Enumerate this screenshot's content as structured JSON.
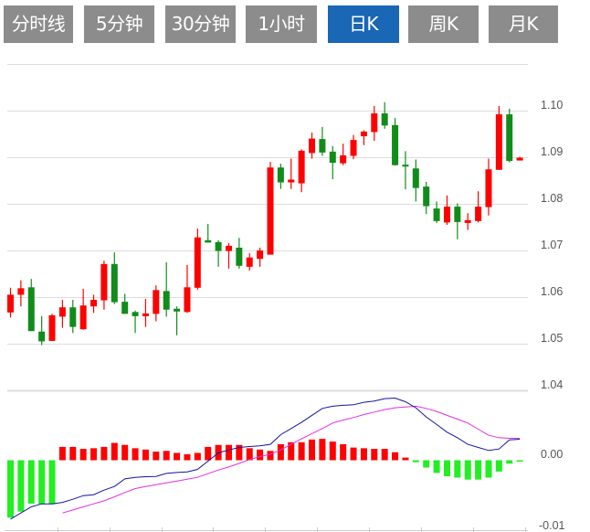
{
  "tabs": [
    {
      "label": "分时线",
      "active": false
    },
    {
      "label": "5分钟",
      "active": false
    },
    {
      "label": "30分钟",
      "active": false
    },
    {
      "label": "1小时",
      "active": false
    },
    {
      "label": "日K",
      "active": true
    },
    {
      "label": "周K",
      "active": false
    },
    {
      "label": "月K",
      "active": false
    }
  ],
  "colors": {
    "tab_bg": "#8c8c8c",
    "tab_active_bg": "#1a67b5",
    "up": "#ff0000",
    "down": "#118c1a",
    "hist_up": "#ff0000",
    "hist_down": "#22ee22",
    "dif": "#1414a0",
    "dea": "#e030e0",
    "grid": "#dddddd"
  },
  "chart_data": [
    {
      "type": "candlestick",
      "y_ticks": [
        "1.10",
        "1.09",
        "1.08",
        "1.07",
        "1.06",
        "1.05",
        "1.04"
      ],
      "ylim": [
        1.04,
        1.11
      ],
      "grid": true,
      "ohlc": [
        [
          1.0567,
          1.062,
          1.0556,
          1.0605
        ],
        [
          1.0605,
          1.0636,
          1.058,
          1.0619
        ],
        [
          1.0621,
          1.0639,
          1.0527,
          1.0527
        ],
        [
          1.0526,
          1.0559,
          1.0497,
          1.0505
        ],
        [
          1.0506,
          1.0564,
          1.0506,
          1.0561
        ],
        [
          1.0558,
          1.0594,
          1.0534,
          1.0578
        ],
        [
          1.0578,
          1.0594,
          1.0523,
          1.0536
        ],
        [
          1.0531,
          1.0618,
          1.053,
          1.0582
        ],
        [
          1.058,
          1.0605,
          1.0566,
          1.0594
        ],
        [
          1.0593,
          1.0678,
          1.0573,
          1.0671
        ],
        [
          1.0671,
          1.0696,
          1.0585,
          1.0589
        ],
        [
          1.059,
          1.0607,
          1.0564,
          1.0564
        ],
        [
          1.0568,
          1.0571,
          1.0523,
          1.0559
        ],
        [
          1.0559,
          1.0596,
          1.0536,
          1.0565
        ],
        [
          1.0564,
          1.0625,
          1.0548,
          1.0615
        ],
        [
          1.0613,
          1.0675,
          1.0558,
          1.0573
        ],
        [
          1.0575,
          1.058,
          1.0518,
          1.0569
        ],
        [
          1.0568,
          1.0669,
          1.0566,
          1.0621
        ],
        [
          1.062,
          1.0747,
          1.0616,
          1.0728
        ],
        [
          1.0722,
          1.0757,
          1.0717,
          1.0717
        ],
        [
          1.0718,
          1.0722,
          1.0665,
          1.0699
        ],
        [
          1.0699,
          1.0716,
          1.0661,
          1.071
        ],
        [
          1.0706,
          1.0727,
          1.0661,
          1.0667
        ],
        [
          1.0665,
          1.0694,
          1.0657,
          1.0685
        ],
        [
          1.0682,
          1.0706,
          1.0665,
          1.07
        ],
        [
          1.0691,
          1.089,
          1.0691,
          1.0878
        ],
        [
          1.0878,
          1.0886,
          1.0832,
          1.0846
        ],
        [
          1.0846,
          1.0897,
          1.0832,
          1.0852
        ],
        [
          1.0844,
          1.0917,
          1.0825,
          1.0914
        ],
        [
          1.0909,
          1.0953,
          1.0897,
          1.094
        ],
        [
          1.0939,
          1.0965,
          1.0903,
          1.091
        ],
        [
          1.0912,
          1.0924,
          1.0853,
          1.0888
        ],
        [
          1.0887,
          1.0929,
          1.0883,
          1.0904
        ],
        [
          1.0903,
          1.0948,
          1.0896,
          1.0937
        ],
        [
          1.0945,
          1.0958,
          1.0926,
          1.0955
        ],
        [
          1.0954,
          1.101,
          1.0935,
          1.0994
        ],
        [
          1.0994,
          1.1018,
          1.0961,
          1.0968
        ],
        [
          1.0969,
          1.0984,
          1.0882,
          1.0883
        ],
        [
          1.0884,
          1.0913,
          1.0831,
          1.088
        ],
        [
          1.0876,
          1.0895,
          1.0805,
          1.0834
        ],
        [
          1.0837,
          1.0847,
          1.0778,
          1.0795
        ],
        [
          1.079,
          1.0805,
          1.0759,
          1.0763
        ],
        [
          1.076,
          1.0818,
          1.0755,
          1.0794
        ],
        [
          1.0794,
          1.0801,
          1.0724,
          1.0761
        ],
        [
          1.0759,
          1.078,
          1.0744,
          1.0765
        ],
        [
          1.0763,
          1.0827,
          1.076,
          1.0794
        ],
        [
          1.0793,
          1.0897,
          1.0775,
          1.0874
        ],
        [
          1.0873,
          1.101,
          1.0873,
          1.0992
        ],
        [
          1.0992,
          1.1004,
          1.0889,
          1.0892
        ],
        [
          1.0893,
          1.0901,
          1.0893,
          1.0899
        ]
      ]
    },
    {
      "type": "bar+line",
      "y_ticks": [
        "0.00",
        "-0.01"
      ],
      "grid": false,
      "histogram": [
        -0.0086,
        -0.0077,
        -0.0065,
        -0.0066,
        -0.0066,
        0.002,
        0.002,
        0.0017,
        0.0018,
        0.002,
        0.0026,
        0.0023,
        0.0018,
        0.0016,
        0.0013,
        0.0014,
        0.0011,
        0.0009,
        0.0011,
        0.002,
        0.0023,
        0.0023,
        0.0023,
        0.0018,
        0.0016,
        0.0014,
        0.0024,
        0.0027,
        0.0027,
        0.0031,
        0.0032,
        0.0028,
        0.0024,
        0.0019,
        0.0018,
        0.0017,
        0.0017,
        0.0012,
        0.0004,
        -0.0003,
        -0.0011,
        -0.0019,
        -0.0024,
        -0.0026,
        -0.0029,
        -0.0029,
        -0.0026,
        -0.0017,
        -0.0005,
        -0.0001
      ],
      "dif": [
        -0.00882,
        -0.00791,
        -0.00699,
        -0.00654,
        -0.00654,
        -0.00631,
        -0.00585,
        -0.0053,
        -0.00516,
        -0.00448,
        -0.00393,
        -0.00279,
        -0.00256,
        -0.00247,
        -0.00242,
        -0.00197,
        -0.00183,
        -0.00174,
        -0.00137,
        -0.00014,
        0.0011,
        0.00155,
        0.00192,
        0.00206,
        0.00215,
        0.00238,
        0.00384,
        0.00475,
        0.00567,
        0.00672,
        0.00777,
        0.00809,
        0.00823,
        0.00832,
        0.00868,
        0.00887,
        0.00923,
        0.00932,
        0.00877,
        0.00786,
        0.00649,
        0.00535,
        0.0042,
        0.00338,
        0.00238,
        0.00192,
        0.00146,
        0.00169,
        0.00306,
        0.00315
      ],
      "dea": [
        null,
        null,
        null,
        null,
        null,
        -0.00791,
        -0.00745,
        -0.00699,
        -0.00654,
        -0.00608,
        -0.00548,
        -0.00484,
        -0.00425,
        -0.00393,
        -0.00366,
        -0.00338,
        -0.00311,
        -0.00283,
        -0.00256,
        -0.00201,
        -0.00146,
        -0.00101,
        -0.00046,
        9e-05,
        0.00055,
        0.00091,
        0.00155,
        0.00238,
        0.0032,
        0.00398,
        0.00475,
        0.00557,
        0.00603,
        0.0064,
        0.00685,
        0.00722,
        0.00759,
        0.00786,
        0.00799,
        0.00809,
        0.00777,
        0.00731,
        0.00672,
        0.00617,
        0.00557,
        0.00466,
        0.00374,
        0.00338,
        0.00329,
        0.00329
      ]
    }
  ]
}
